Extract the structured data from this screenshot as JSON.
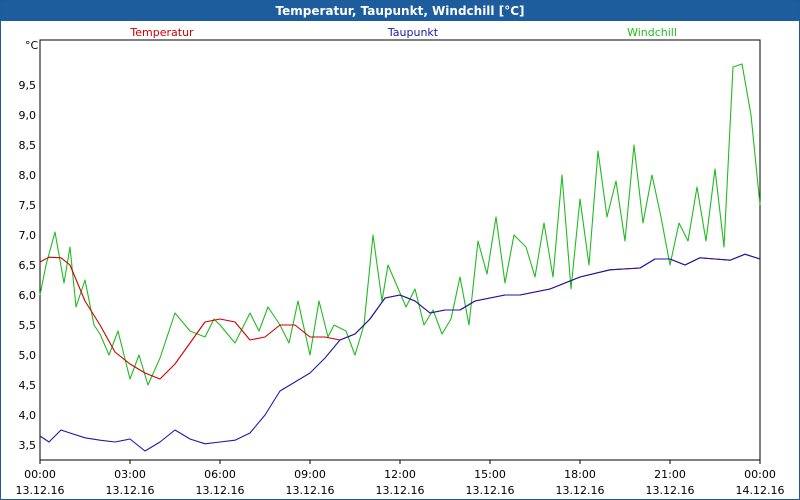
{
  "window": {
    "title": "Temperatur, Taupunkt, Windchill [°C]"
  },
  "chart_data": {
    "type": "line",
    "title": "Temperatur, Taupunkt, Windchill [°C]",
    "ylabel": "°C",
    "ylim": [
      3.25,
      10.25
    ],
    "yticks": [
      "3,5",
      "4,0",
      "4,5",
      "5,0",
      "5,5",
      "6,0",
      "6,5",
      "7,0",
      "7,5",
      "8,0",
      "8,5",
      "9,0",
      "9,5"
    ],
    "ytick_values": [
      3.5,
      4.0,
      4.5,
      5.0,
      5.5,
      6.0,
      6.5,
      7.0,
      7.5,
      8.0,
      8.5,
      9.0,
      9.5
    ],
    "xlim": [
      0,
      24
    ],
    "xticks": [
      {
        "time": "00:00",
        "date": "13.12.16",
        "h": 0
      },
      {
        "time": "03:00",
        "date": "13.12.16",
        "h": 3
      },
      {
        "time": "06:00",
        "date": "13.12.16",
        "h": 6
      },
      {
        "time": "09:00",
        "date": "13.12.16",
        "h": 9
      },
      {
        "time": "12:00",
        "date": "13.12.16",
        "h": 12
      },
      {
        "time": "15:00",
        "date": "13.12.16",
        "h": 15
      },
      {
        "time": "18:00",
        "date": "13.12.16",
        "h": 18
      },
      {
        "time": "21:00",
        "date": "13.12.16",
        "h": 21
      },
      {
        "time": "00:00",
        "date": "14.12.16",
        "h": 24
      }
    ],
    "grid": true,
    "legend_position": "top",
    "series": [
      {
        "name": "Temperatur",
        "color": "#cc0000",
        "x": [
          0,
          0.3,
          0.7,
          1,
          1.5,
          2,
          2.5,
          3,
          3.5,
          4,
          4.5,
          5,
          5.5,
          6,
          6.5,
          7,
          7.5,
          8,
          8.5,
          9,
          9.5,
          10,
          10.5,
          11,
          11.5,
          12,
          12.5,
          13,
          13.5,
          14,
          14.5,
          15,
          15.5,
          16,
          17,
          18,
          19,
          20,
          20.5,
          21,
          21.5,
          22,
          22.5,
          23,
          23.5,
          24
        ],
        "values": [
          6.55,
          6.63,
          6.62,
          6.5,
          5.9,
          5.5,
          5.05,
          4.85,
          4.7,
          4.6,
          4.85,
          5.2,
          5.55,
          5.6,
          5.55,
          5.25,
          5.3,
          5.5,
          5.5,
          5.3,
          5.3,
          5.25,
          5.35,
          5.6,
          5.95,
          6.0,
          5.9,
          5.7,
          5.75,
          5.75,
          5.9,
          5.95,
          6.0,
          6.0,
          6.1,
          6.3,
          6.42,
          6.45,
          6.6,
          6.6,
          6.5,
          6.62,
          6.6,
          6.58,
          6.68,
          6.6
        ]
      },
      {
        "name": "Taupunkt",
        "color": "#1a1aaa",
        "x": [
          0,
          0.3,
          0.7,
          1,
          1.5,
          2,
          2.5,
          3,
          3.5,
          4,
          4.5,
          5,
          5.5,
          6,
          6.5,
          7,
          7.5,
          8,
          8.5,
          9,
          9.5,
          10,
          10.5,
          11,
          11.5,
          12,
          12.5,
          13,
          13.5,
          14,
          14.5,
          15,
          15.5,
          16,
          17,
          18,
          19,
          20,
          20.5,
          21,
          21.5,
          22,
          22.5,
          23,
          23.5,
          24
        ],
        "values": [
          3.65,
          3.55,
          3.75,
          3.7,
          3.62,
          3.58,
          3.55,
          3.6,
          3.4,
          3.55,
          3.75,
          3.6,
          3.52,
          3.55,
          3.58,
          3.7,
          4.0,
          4.4,
          4.55,
          4.7,
          4.95,
          5.25,
          5.35,
          5.6,
          5.95,
          6.0,
          5.9,
          5.7,
          5.75,
          5.75,
          5.9,
          5.95,
          6.0,
          6.0,
          6.1,
          6.3,
          6.42,
          6.45,
          6.6,
          6.6,
          6.5,
          6.62,
          6.6,
          6.58,
          6.68,
          6.6
        ]
      },
      {
        "name": "Windchill",
        "color": "#22bb22",
        "x": [
          0,
          0.2,
          0.5,
          0.8,
          1,
          1.2,
          1.5,
          1.8,
          2,
          2.3,
          2.6,
          3,
          3.3,
          3.6,
          4,
          4.5,
          5,
          5.5,
          5.8,
          6,
          6.5,
          7,
          7.3,
          7.6,
          8,
          8.3,
          8.6,
          9,
          9.3,
          9.6,
          9.8,
          10.2,
          10.5,
          10.8,
          11.1,
          11.4,
          11.6,
          11.9,
          12.2,
          12.5,
          12.8,
          13.1,
          13.4,
          13.7,
          14,
          14.3,
          14.6,
          14.9,
          15.2,
          15.5,
          15.8,
          16.2,
          16.5,
          16.8,
          17.1,
          17.4,
          17.7,
          18,
          18.3,
          18.6,
          18.9,
          19.2,
          19.5,
          19.8,
          20.1,
          20.4,
          20.7,
          21,
          21.3,
          21.6,
          21.9,
          22.2,
          22.5,
          22.8,
          23.1,
          23.4,
          23.7,
          24
        ],
        "values": [
          6.0,
          6.5,
          7.05,
          6.2,
          6.8,
          5.8,
          6.25,
          5.5,
          5.35,
          5.0,
          5.4,
          4.6,
          5.0,
          4.5,
          4.95,
          5.7,
          5.4,
          5.3,
          5.6,
          5.5,
          5.2,
          5.7,
          5.4,
          5.8,
          5.5,
          5.2,
          5.9,
          5.0,
          5.9,
          5.3,
          5.5,
          5.4,
          5.0,
          5.5,
          7.0,
          5.9,
          6.5,
          6.15,
          5.8,
          6.1,
          5.5,
          5.75,
          5.35,
          5.6,
          6.3,
          5.5,
          6.9,
          6.35,
          7.3,
          6.2,
          7.0,
          6.8,
          6.3,
          7.2,
          6.3,
          8.0,
          6.1,
          7.6,
          6.5,
          8.4,
          7.3,
          7.9,
          6.9,
          8.5,
          7.2,
          8.0,
          7.3,
          6.5,
          7.2,
          6.9,
          7.8,
          6.9,
          8.1,
          6.8,
          9.8,
          9.85,
          9.0,
          7.5
        ]
      }
    ]
  }
}
